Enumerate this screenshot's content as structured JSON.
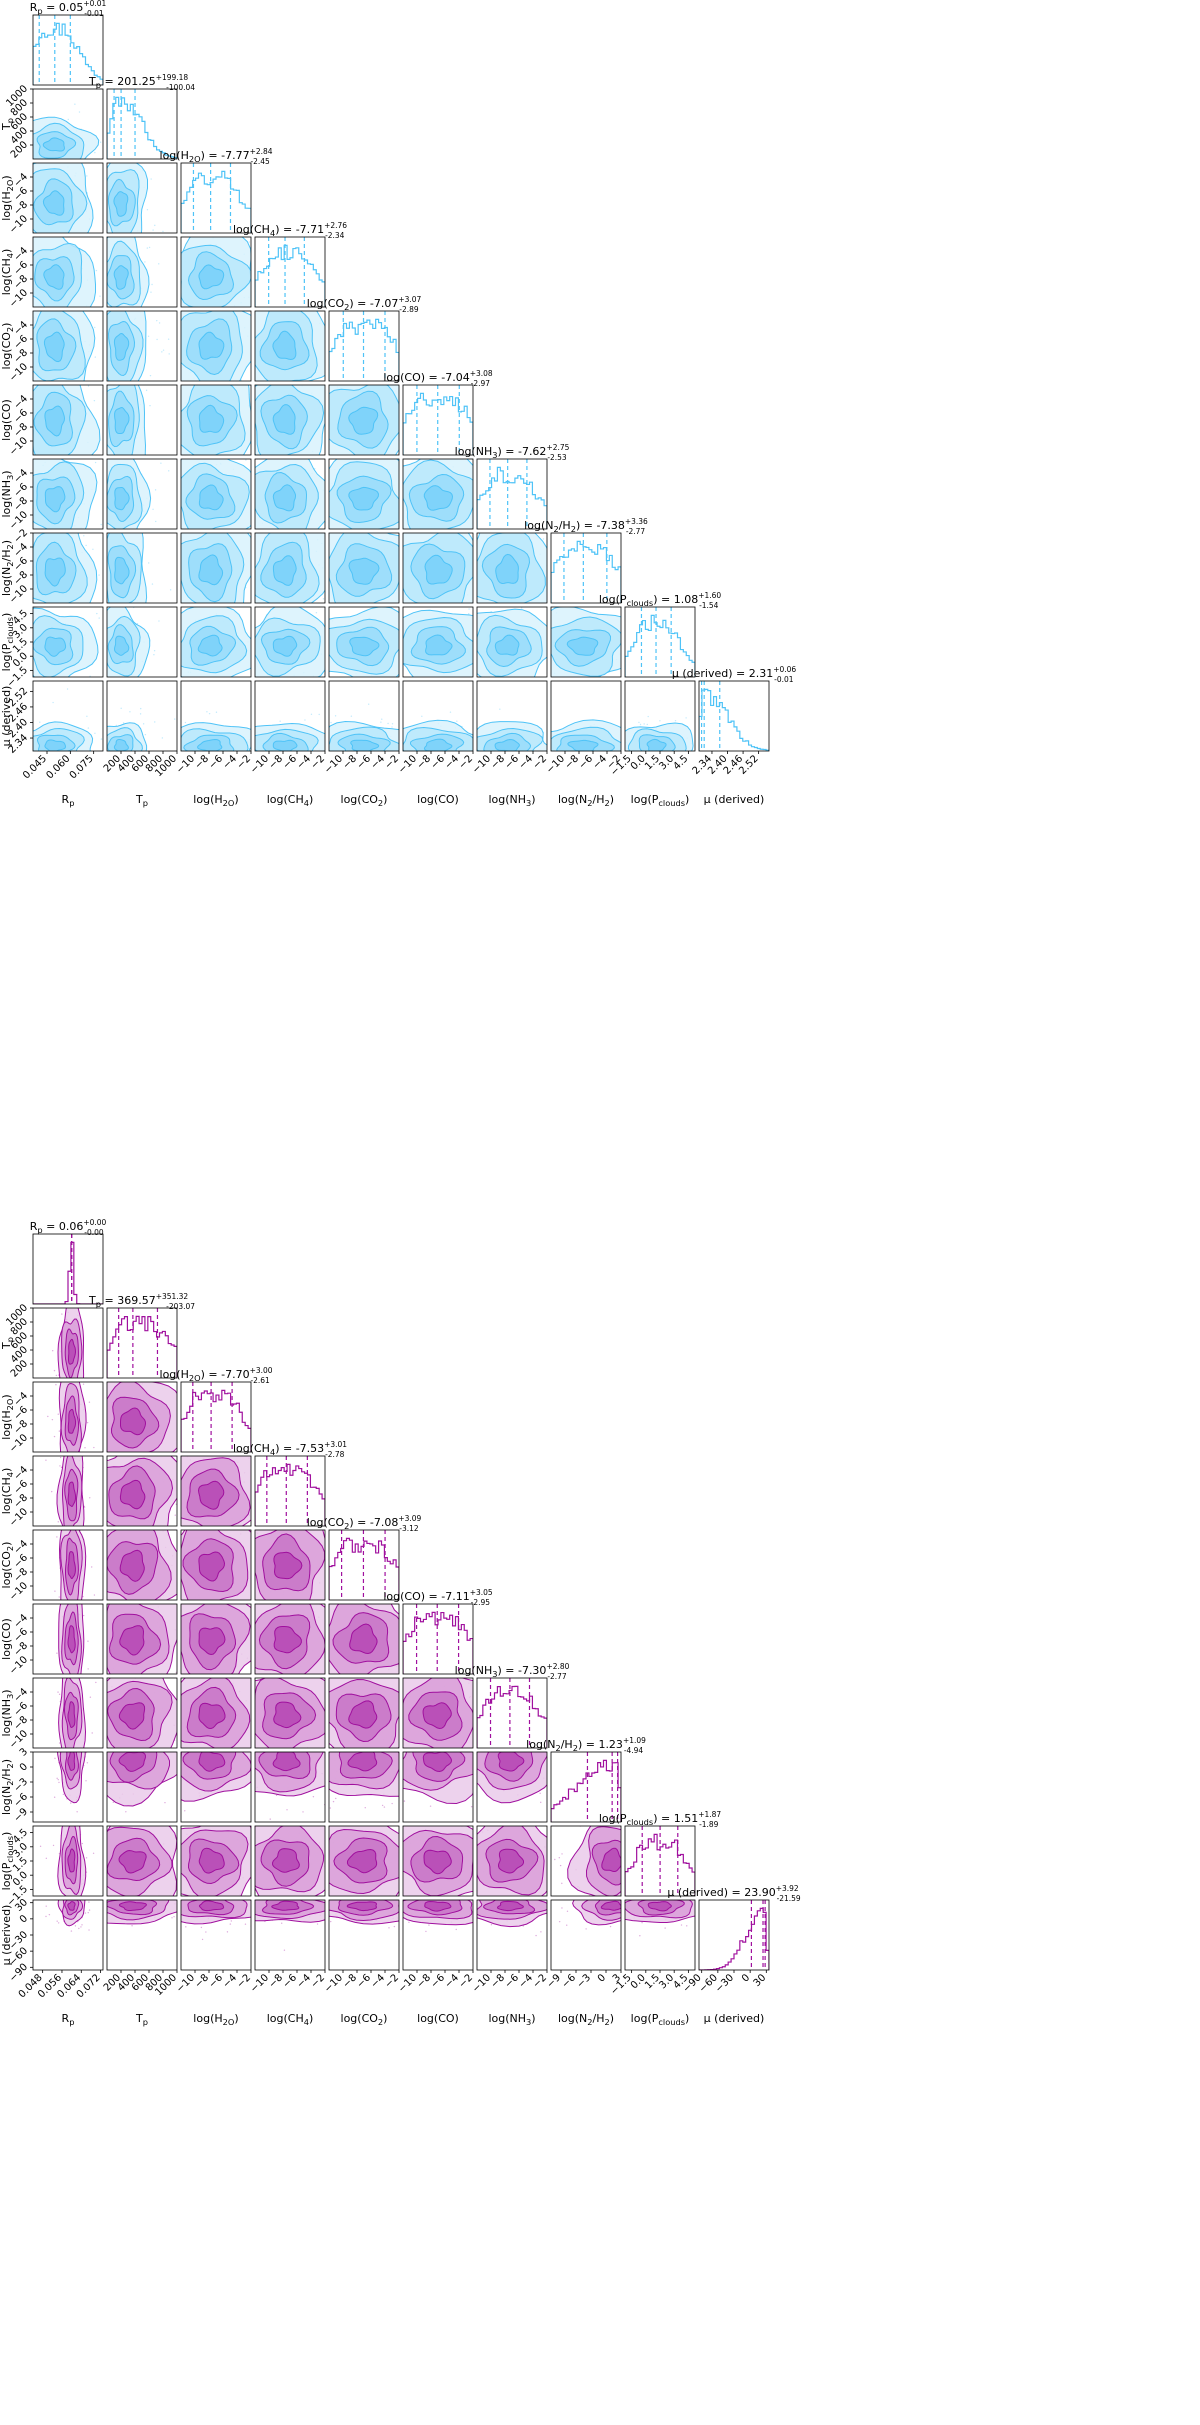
{
  "chart_data": [
    {
      "type": "corner",
      "color": "#4fc3f7",
      "parameters": [
        {
          "key": "Rp",
          "title": "R_p = 0.05^{+0.01}_{-0.01}",
          "label": "R_p",
          "median": 0.05,
          "plus": 0.01,
          "minus": 0.01,
          "range": [
            0.036,
            0.081
          ],
          "ticks": [
            "0.045",
            "0.060",
            "0.075"
          ]
        },
        {
          "key": "Tp",
          "title": "T_p = 201.25^{+199.18}_{-100.04}",
          "label": "T_p",
          "median": 201.25,
          "plus": 199.18,
          "minus": 100.04,
          "range": [
            0,
            1000
          ],
          "ticks": [
            "200",
            "400",
            "600",
            "800",
            "1000"
          ]
        },
        {
          "key": "H2O",
          "title": "log(H_2O) = -7.77^{+2.84}_{-2.45}",
          "label": "log(H_2O)",
          "median": -7.77,
          "plus": 2.84,
          "minus": 2.45,
          "range": [
            -12,
            -2
          ],
          "ticks": [
            "-10",
            "-8",
            "-6",
            "-4",
            "-2"
          ]
        },
        {
          "key": "CH4",
          "title": "log(CH_4) = -7.71^{+2.76}_{-2.34}",
          "label": "log(CH_4)",
          "median": -7.71,
          "plus": 2.76,
          "minus": 2.34,
          "range": [
            -12,
            -2
          ],
          "ticks": [
            "-10",
            "-8",
            "-6",
            "-4",
            "-2"
          ]
        },
        {
          "key": "CO2",
          "title": "log(CO_2) = -7.07^{+3.07}_{-2.89}",
          "label": "log(CO_2)",
          "median": -7.07,
          "plus": 3.07,
          "minus": 2.89,
          "range": [
            -12,
            -2
          ],
          "ticks": [
            "-10",
            "-8",
            "-6",
            "-4",
            "-2"
          ]
        },
        {
          "key": "CO",
          "title": "log(CO) = -7.04^{+3.08}_{-2.97}",
          "label": "log(CO)",
          "median": -7.04,
          "plus": 3.08,
          "minus": 2.97,
          "range": [
            -12,
            -2
          ],
          "ticks": [
            "-10",
            "-8",
            "-6",
            "-4",
            "-2"
          ]
        },
        {
          "key": "NH3",
          "title": "log(NH_3) = -7.62^{+2.75}_{-2.53}",
          "label": "log(NH_3)",
          "median": -7.62,
          "plus": 2.75,
          "minus": 2.53,
          "range": [
            -12,
            -2
          ],
          "ticks": [
            "-10",
            "-8",
            "-6",
            "-4",
            "-2"
          ]
        },
        {
          "key": "N2H2",
          "title": "log(N_2/H_2) = -7.38^{+3.36}_{-2.77}",
          "label": "log(N_2/H_2)",
          "median": -7.38,
          "plus": 3.36,
          "minus": 2.77,
          "range": [
            -12,
            -2
          ],
          "ticks": [
            "-10",
            "-8",
            "-6",
            "-4",
            "-2"
          ]
        },
        {
          "key": "Pclouds",
          "title": "log(P_clouds) = 1.08^{+1.60}_{-1.54}",
          "label": "log(P_clouds)",
          "median": 1.08,
          "plus": 1.6,
          "minus": 1.54,
          "range": [
            -2.2,
            5.2
          ],
          "ticks": [
            "-1.5",
            "0.0",
            "1.5",
            "3.0",
            "4.5"
          ]
        },
        {
          "key": "mu",
          "title": "μ (derived) = 2.31^{+0.06}_{-0.01}",
          "label": "μ (derived)",
          "median": 2.31,
          "plus": 0.06,
          "minus": 0.01,
          "range": [
            2.29,
            2.56
          ],
          "ticks": [
            "2.34",
            "2.40",
            "2.46",
            "2.52"
          ]
        }
      ],
      "row_ticks": {
        "Tp": [
          "200",
          "400",
          "600",
          "800",
          "1000"
        ],
        "H2O": [
          "-10",
          "-8",
          "-6",
          "-4"
        ],
        "CH4": [
          "-10",
          "-8",
          "-6",
          "-4"
        ],
        "CO2": [
          "-10",
          "-8",
          "-6",
          "-4"
        ],
        "CO": [
          "-10",
          "-8",
          "-6",
          "-4"
        ],
        "NH3": [
          "-10",
          "-8",
          "-6",
          "-4"
        ],
        "N2H2": [
          "-10",
          "-8",
          "-6",
          "-4",
          "-2"
        ],
        "Pclouds": [
          "-1.5",
          "0.0",
          "1.5",
          "3.0",
          "4.5"
        ],
        "mu": [
          "2.34",
          "2.40",
          "2.46",
          "2.52"
        ]
      }
    },
    {
      "type": "corner",
      "color": "#a0109e",
      "parameters": [
        {
          "key": "Rp",
          "title": "R_p = 0.06^{+0.00}_{-0.00}",
          "label": "R_p",
          "median": 0.06,
          "plus": 0.0,
          "minus": 0.0,
          "range": [
            0.044,
            0.073
          ],
          "ticks": [
            "0.048",
            "0.056",
            "0.064",
            "0.072"
          ]
        },
        {
          "key": "Tp",
          "title": "T_p = 369.57^{+351.32}_{-203.07}",
          "label": "T_p",
          "median": 369.57,
          "plus": 351.32,
          "minus": 203.07,
          "range": [
            0,
            1000
          ],
          "ticks": [
            "200",
            "400",
            "600",
            "800",
            "1000"
          ]
        },
        {
          "key": "H2O",
          "title": "log(H_2O) = -7.70^{+3.00}_{-2.61}",
          "label": "log(H_2O)",
          "median": -7.7,
          "plus": 3.0,
          "minus": 2.61,
          "range": [
            -12,
            -2
          ],
          "ticks": [
            "-10",
            "-8",
            "-6",
            "-4",
            "-2"
          ]
        },
        {
          "key": "CH4",
          "title": "log(CH_4) = -7.53^{+3.01}_{-2.78}",
          "label": "log(CH_4)",
          "median": -7.53,
          "plus": 3.01,
          "minus": 2.78,
          "range": [
            -12,
            -2
          ],
          "ticks": [
            "-10",
            "-8",
            "-6",
            "-4",
            "-2"
          ]
        },
        {
          "key": "CO2",
          "title": "log(CO_2) = -7.08^{+3.09}_{-3.12}",
          "label": "log(CO_2)",
          "median": -7.08,
          "plus": 3.09,
          "minus": 3.12,
          "range": [
            -12,
            -2
          ],
          "ticks": [
            "-10",
            "-8",
            "-6",
            "-4",
            "-2"
          ]
        },
        {
          "key": "CO",
          "title": "log(CO) = -7.11^{+3.05}_{-2.95}",
          "label": "log(CO)",
          "median": -7.11,
          "plus": 3.05,
          "minus": 2.95,
          "range": [
            -12,
            -2
          ],
          "ticks": [
            "-10",
            "-8",
            "-6",
            "-4",
            "-2"
          ]
        },
        {
          "key": "NH3",
          "title": "log(NH_3) = -7.30^{+2.80}_{-2.77}",
          "label": "log(NH_3)",
          "median": -7.3,
          "plus": 2.8,
          "minus": 2.77,
          "range": [
            -12,
            -2
          ],
          "ticks": [
            "-10",
            "-8",
            "-6",
            "-4",
            "-2"
          ]
        },
        {
          "key": "N2H2",
          "title": "log(N_2/H_2) = 1.23^{+1.09}_{-4.94}",
          "label": "log(N_2/H_2)",
          "median": 1.23,
          "plus": 1.09,
          "minus": 4.94,
          "range": [
            -11,
            3
          ],
          "ticks": [
            "-9",
            "-6",
            "-3",
            "0",
            "3"
          ]
        },
        {
          "key": "Pclouds",
          "title": "log(P_clouds) = 1.51^{+1.87}_{-1.89}",
          "label": "log(P_clouds)",
          "median": 1.51,
          "plus": 1.87,
          "minus": 1.89,
          "range": [
            -2.2,
            5.2
          ],
          "ticks": [
            "-1.5",
            "0.0",
            "1.5",
            "3.0",
            "4.5"
          ]
        },
        {
          "key": "mu",
          "title": "μ (derived) = 23.90^{+3.92}_{-21.59}",
          "label": "μ (derived)",
          "median": 23.9,
          "plus": 3.92,
          "minus": 21.59,
          "range": [
            -95,
            35
          ],
          "ticks": [
            "-90",
            "-60",
            "-30",
            "0",
            "30"
          ]
        }
      ],
      "row_ticks": {
        "Tp": [
          "200",
          "400",
          "600",
          "800",
          "1000"
        ],
        "H2O": [
          "-10",
          "-8",
          "-6",
          "-4"
        ],
        "CH4": [
          "-10",
          "-8",
          "-6",
          "-4"
        ],
        "CO2": [
          "-10",
          "-8",
          "-6",
          "-4"
        ],
        "CO": [
          "-10",
          "-8",
          "-6",
          "-4"
        ],
        "NH3": [
          "-10",
          "-8",
          "-6",
          "-4"
        ],
        "N2H2": [
          "-9",
          "-6",
          "-3",
          "0",
          "3"
        ],
        "Pclouds": [
          "-1.5",
          "0.0",
          "1.5",
          "3.0",
          "4.5"
        ],
        "mu": [
          "-90",
          "-60",
          "-30",
          "0",
          "30"
        ]
      }
    }
  ]
}
